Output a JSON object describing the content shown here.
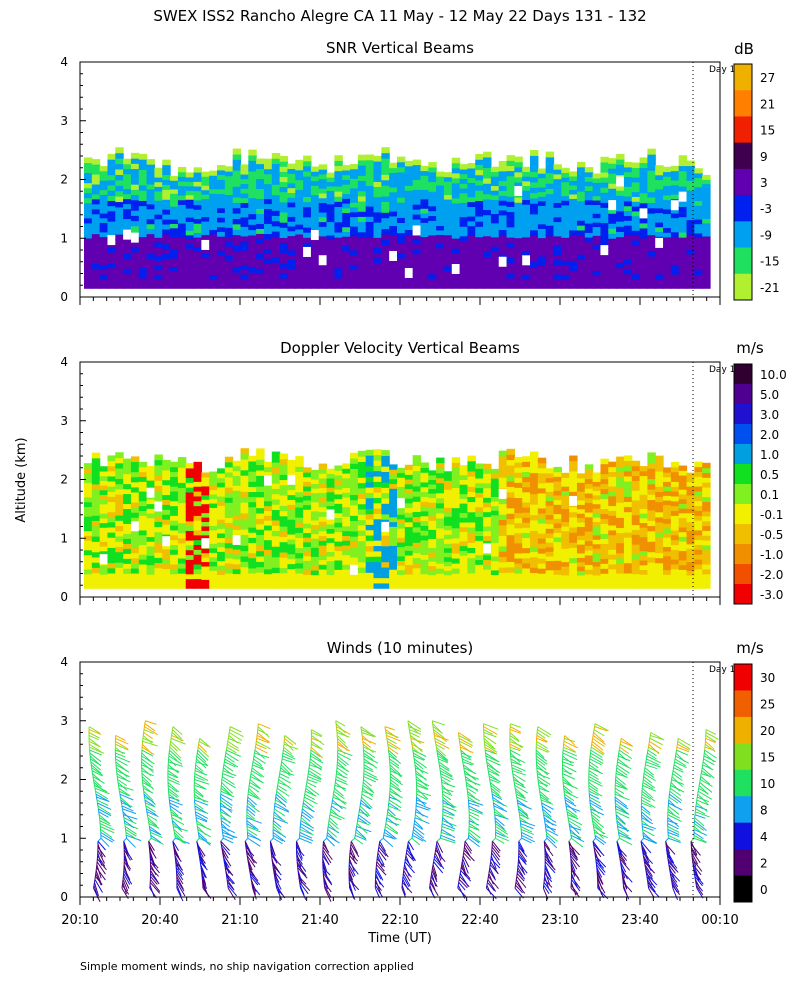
{
  "title": "SWEX ISS2 Rancho Alegre CA  11 May - 12 May 22 Days 131 - 132",
  "footnote": "Simple moment winds, no ship navigation correction applied",
  "y_axis_label": "Altitude (km)",
  "x_axis_label": "Time (UT)",
  "day_marker_label": "Day 1",
  "chart_data": [
    {
      "type": "heatmap",
      "title": "SNR Vertical Beams",
      "xlabel": "Time (UT)",
      "ylabel": "Altitude (km)",
      "x_ticks": [
        "20:10",
        "20:40",
        "21:10",
        "21:40",
        "22:10",
        "22:40",
        "23:10",
        "23:40",
        "00:10"
      ],
      "y_ticks": [
        "0",
        "1",
        "2",
        "3",
        "4"
      ],
      "ylim": [
        0,
        4
      ],
      "colorbar": {
        "unit": "dB",
        "levels": [
          "27",
          "21",
          "15",
          "9",
          "3",
          "-3",
          "-9",
          "-15",
          "-21"
        ],
        "colors": [
          "#f0b000",
          "#ff8000",
          "#f02000",
          "#400050",
          "#6000b0",
          "#0020f0",
          "#00a0f0",
          "#20e060",
          "#b0f030"
        ]
      },
      "data_top_km": 2.3
    },
    {
      "type": "heatmap",
      "title": "Doppler Velocity Vertical Beams",
      "xlabel": "Time (UT)",
      "ylabel": "Altitude (km)",
      "x_ticks": [
        "20:10",
        "20:40",
        "21:10",
        "21:40",
        "22:10",
        "22:40",
        "23:10",
        "23:40",
        "00:10"
      ],
      "y_ticks": [
        "0",
        "1",
        "2",
        "3",
        "4"
      ],
      "ylim": [
        0,
        4
      ],
      "colorbar": {
        "unit": "m/s",
        "levels": [
          "10.0",
          "5.0",
          "3.0",
          "2.0",
          "1.0",
          "0.5",
          "0.1",
          "-0.1",
          "-0.5",
          "-1.0",
          "-2.0",
          "-3.0"
        ],
        "colors": [
          "#300030",
          "#500090",
          "#2010d0",
          "#0050f0",
          "#00a0e0",
          "#10e020",
          "#80f020",
          "#f0f000",
          "#f0c000",
          "#f09000",
          "#f05000",
          "#f00000"
        ]
      },
      "data_top_km": 2.3
    },
    {
      "type": "scatter",
      "title": "Winds (10 minutes)",
      "xlabel": "Time (UT)",
      "ylabel": "Altitude (km)",
      "x_ticks": [
        "20:10",
        "20:40",
        "21:10",
        "21:40",
        "22:10",
        "22:40",
        "23:10",
        "23:40",
        "00:10"
      ],
      "y_ticks": [
        "0",
        "1",
        "2",
        "3",
        "4"
      ],
      "ylim": [
        0,
        4
      ],
      "colorbar": {
        "unit": "m/s",
        "levels": [
          "30",
          "25",
          "20",
          "15",
          "10",
          "8",
          "4",
          "2",
          "0"
        ],
        "colors": [
          "#f00000",
          "#f06000",
          "#f0b000",
          "#80e020",
          "#20e060",
          "#10a0f0",
          "#1010e0",
          "#500070",
          "#000000"
        ]
      },
      "profile_count": 24,
      "profile_top_km": 2.9
    }
  ]
}
